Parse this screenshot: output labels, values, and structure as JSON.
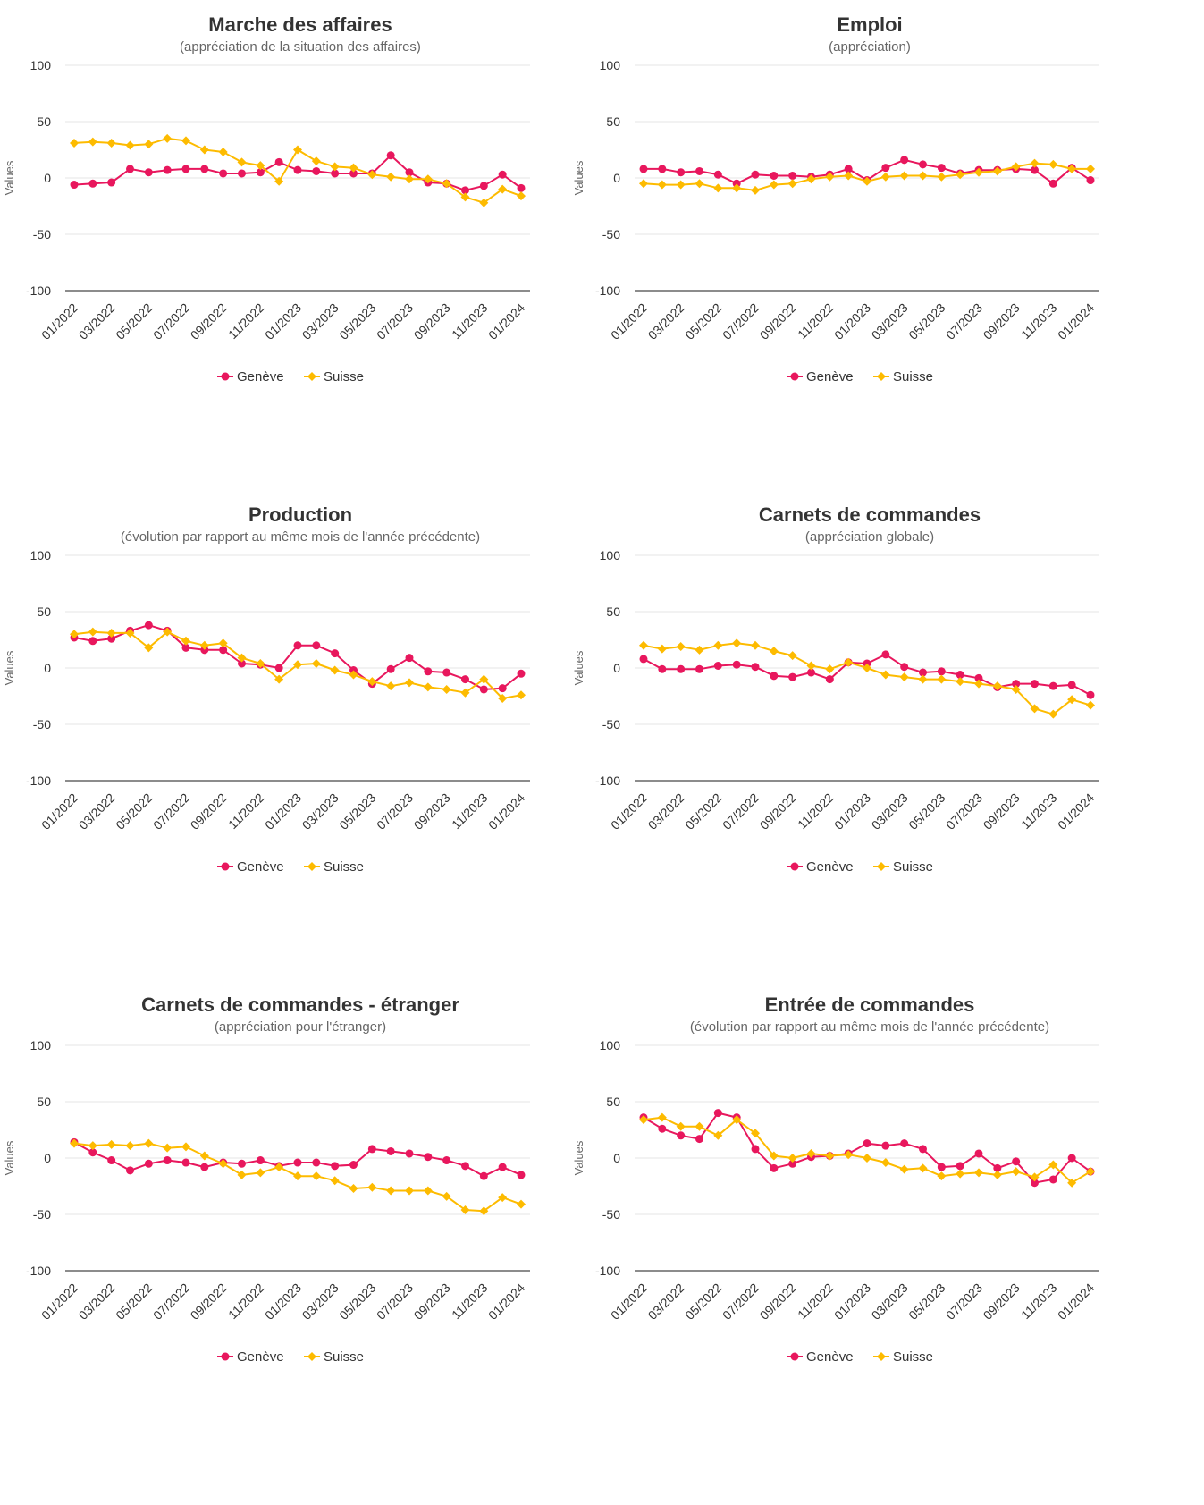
{
  "legend": {
    "geneve": "Genève",
    "suisse": "Suisse"
  },
  "colors": {
    "geneve": "#e8175d",
    "suisse": "#fdbb00"
  },
  "chart_data": [
    {
      "type": "line",
      "title": "Marche des affaires",
      "subtitle": "(appréciation de la situation des affaires)",
      "ylabel": "Values",
      "ylim": [
        -100,
        100
      ],
      "yticks": [
        100,
        50,
        0,
        -50,
        -100
      ],
      "x": [
        "01/2022",
        "02/2022",
        "03/2022",
        "04/2022",
        "05/2022",
        "06/2022",
        "07/2022",
        "08/2022",
        "09/2022",
        "10/2022",
        "11/2022",
        "12/2022",
        "01/2023",
        "02/2023",
        "03/2023",
        "04/2023",
        "05/2023",
        "06/2023",
        "07/2023",
        "08/2023",
        "09/2023",
        "10/2023",
        "11/2023",
        "12/2023",
        "01/2024"
      ],
      "xticks": [
        "01/2022",
        "03/2022",
        "05/2022",
        "07/2022",
        "09/2022",
        "11/2022",
        "01/2023",
        "03/2023",
        "05/2023",
        "07/2023",
        "09/2023",
        "11/2023",
        "01/2024"
      ],
      "series": [
        {
          "name": "Genève",
          "values": [
            -6,
            -5,
            -4,
            8,
            5,
            7,
            8,
            8,
            4,
            4,
            5,
            14,
            7,
            6,
            4,
            4,
            4,
            20,
            5,
            -4,
            -5,
            -11,
            -7,
            3,
            -9
          ]
        },
        {
          "name": "Suisse",
          "values": [
            31,
            32,
            31,
            29,
            30,
            35,
            33,
            25,
            23,
            14,
            11,
            -3,
            25,
            15,
            10,
            9,
            3,
            1,
            -1,
            -1,
            -5,
            -17,
            -22,
            -10,
            -16
          ]
        }
      ]
    },
    {
      "type": "line",
      "title": "Emploi",
      "subtitle": "(appréciation)",
      "ylabel": "Values",
      "ylim": [
        -100,
        100
      ],
      "yticks": [
        100,
        50,
        0,
        -50,
        -100
      ],
      "x": [
        "01/2022",
        "02/2022",
        "03/2022",
        "04/2022",
        "05/2022",
        "06/2022",
        "07/2022",
        "08/2022",
        "09/2022",
        "10/2022",
        "11/2022",
        "12/2022",
        "01/2023",
        "02/2023",
        "03/2023",
        "04/2023",
        "05/2023",
        "06/2023",
        "07/2023",
        "08/2023",
        "09/2023",
        "10/2023",
        "11/2023",
        "12/2023",
        "01/2024"
      ],
      "xticks": [
        "01/2022",
        "03/2022",
        "05/2022",
        "07/2022",
        "09/2022",
        "11/2022",
        "01/2023",
        "03/2023",
        "05/2023",
        "07/2023",
        "09/2023",
        "11/2023",
        "01/2024"
      ],
      "series": [
        {
          "name": "Genève",
          "values": [
            8,
            8,
            5,
            6,
            3,
            -5,
            3,
            2,
            2,
            1,
            3,
            8,
            -2,
            9,
            16,
            12,
            9,
            4,
            7,
            7,
            8,
            7,
            -5,
            9,
            -2
          ]
        },
        {
          "name": "Suisse",
          "values": [
            -5,
            -6,
            -6,
            -5,
            -9,
            -9,
            -11,
            -6,
            -5,
            -1,
            1,
            2,
            -3,
            1,
            2,
            2,
            1,
            3,
            5,
            6,
            10,
            13,
            12,
            8,
            8
          ]
        }
      ]
    },
    {
      "type": "line",
      "title": "Production",
      "subtitle": "(évolution par rapport au même mois de l'année précédente)",
      "ylabel": "Values",
      "ylim": [
        -100,
        100
      ],
      "yticks": [
        100,
        50,
        0,
        -50,
        -100
      ],
      "x": [
        "01/2022",
        "02/2022",
        "03/2022",
        "04/2022",
        "05/2022",
        "06/2022",
        "07/2022",
        "08/2022",
        "09/2022",
        "10/2022",
        "11/2022",
        "12/2022",
        "01/2023",
        "02/2023",
        "03/2023",
        "04/2023",
        "05/2023",
        "06/2023",
        "07/2023",
        "08/2023",
        "09/2023",
        "10/2023",
        "11/2023",
        "12/2023",
        "01/2024"
      ],
      "xticks": [
        "01/2022",
        "03/2022",
        "05/2022",
        "07/2022",
        "09/2022",
        "11/2022",
        "01/2023",
        "03/2023",
        "05/2023",
        "07/2023",
        "09/2023",
        "11/2023",
        "01/2024"
      ],
      "series": [
        {
          "name": "Genève",
          "values": [
            27,
            24,
            26,
            33,
            38,
            33,
            18,
            16,
            16,
            4,
            3,
            0,
            20,
            20,
            13,
            -2,
            -14,
            -1,
            9,
            -3,
            -4,
            -10,
            -19,
            -18,
            -5
          ]
        },
        {
          "name": "Suisse",
          "values": [
            30,
            32,
            31,
            31,
            18,
            32,
            24,
            20,
            22,
            9,
            4,
            -10,
            3,
            4,
            -2,
            -6,
            -12,
            -16,
            -13,
            -17,
            -19,
            -22,
            -10,
            -27,
            -24
          ]
        }
      ]
    },
    {
      "type": "line",
      "title": "Carnets de commandes",
      "subtitle": "(appréciation globale)",
      "ylabel": "Values",
      "ylim": [
        -100,
        100
      ],
      "yticks": [
        100,
        50,
        0,
        -50,
        -100
      ],
      "x": [
        "01/2022",
        "02/2022",
        "03/2022",
        "04/2022",
        "05/2022",
        "06/2022",
        "07/2022",
        "08/2022",
        "09/2022",
        "10/2022",
        "11/2022",
        "12/2022",
        "01/2023",
        "02/2023",
        "03/2023",
        "04/2023",
        "05/2023",
        "06/2023",
        "07/2023",
        "08/2023",
        "09/2023",
        "10/2023",
        "11/2023",
        "12/2023",
        "01/2024"
      ],
      "xticks": [
        "01/2022",
        "03/2022",
        "05/2022",
        "07/2022",
        "09/2022",
        "11/2022",
        "01/2023",
        "03/2023",
        "05/2023",
        "07/2023",
        "09/2023",
        "11/2023",
        "01/2024"
      ],
      "series": [
        {
          "name": "Genève",
          "values": [
            8,
            -1,
            -1,
            -1,
            2,
            3,
            1,
            -7,
            -8,
            -4,
            -10,
            5,
            4,
            12,
            1,
            -4,
            -3,
            -6,
            -9,
            -17,
            -14,
            -14,
            -16,
            -15,
            -24
          ]
        },
        {
          "name": "Suisse",
          "values": [
            20,
            17,
            19,
            16,
            20,
            22,
            20,
            15,
            11,
            2,
            -1,
            5,
            0,
            -6,
            -8,
            -10,
            -10,
            -12,
            -14,
            -16,
            -19,
            -36,
            -41,
            -28,
            -33
          ]
        }
      ]
    },
    {
      "type": "line",
      "title": "Carnets de commandes - étranger",
      "subtitle": "(appréciation pour l'étranger)",
      "ylabel": "Values",
      "ylim": [
        -100,
        100
      ],
      "yticks": [
        100,
        50,
        0,
        -50,
        -100
      ],
      "x": [
        "01/2022",
        "02/2022",
        "03/2022",
        "04/2022",
        "05/2022",
        "06/2022",
        "07/2022",
        "08/2022",
        "09/2022",
        "10/2022",
        "11/2022",
        "12/2022",
        "01/2023",
        "02/2023",
        "03/2023",
        "04/2023",
        "05/2023",
        "06/2023",
        "07/2023",
        "08/2023",
        "09/2023",
        "10/2023",
        "11/2023",
        "12/2023",
        "01/2024"
      ],
      "xticks": [
        "01/2022",
        "03/2022",
        "05/2022",
        "07/2022",
        "09/2022",
        "11/2022",
        "01/2023",
        "03/2023",
        "05/2023",
        "07/2023",
        "09/2023",
        "11/2023",
        "01/2024"
      ],
      "series": [
        {
          "name": "Genève",
          "values": [
            14,
            5,
            -2,
            -11,
            -5,
            -2,
            -4,
            -8,
            -4,
            -5,
            -2,
            -7,
            -4,
            -4,
            -7,
            -6,
            8,
            6,
            4,
            1,
            -2,
            -7,
            -16,
            -8,
            -15
          ]
        },
        {
          "name": "Suisse",
          "values": [
            13,
            11,
            12,
            11,
            13,
            9,
            10,
            2,
            -5,
            -15,
            -13,
            -8,
            -16,
            -16,
            -20,
            -27,
            -26,
            -29,
            -29,
            -29,
            -34,
            -46,
            -47,
            -35,
            -41
          ]
        }
      ]
    },
    {
      "type": "line",
      "title": "Entrée de commandes",
      "subtitle": "(évolution par rapport au même mois de l'année précédente)",
      "ylabel": "Values",
      "ylim": [
        -100,
        100
      ],
      "yticks": [
        100,
        50,
        0,
        -50,
        -100
      ],
      "x": [
        "01/2022",
        "02/2022",
        "03/2022",
        "04/2022",
        "05/2022",
        "06/2022",
        "07/2022",
        "08/2022",
        "09/2022",
        "10/2022",
        "11/2022",
        "12/2022",
        "01/2023",
        "02/2023",
        "03/2023",
        "04/2023",
        "05/2023",
        "06/2023",
        "07/2023",
        "08/2023",
        "09/2023",
        "10/2023",
        "11/2023",
        "12/2023",
        "01/2024"
      ],
      "xticks": [
        "01/2022",
        "03/2022",
        "05/2022",
        "07/2022",
        "09/2022",
        "11/2022",
        "01/2023",
        "03/2023",
        "05/2023",
        "07/2023",
        "09/2023",
        "11/2023",
        "01/2024"
      ],
      "series": [
        {
          "name": "Genève",
          "values": [
            36,
            26,
            20,
            17,
            40,
            36,
            8,
            -9,
            -5,
            1,
            2,
            4,
            13,
            11,
            13,
            8,
            -8,
            -7,
            4,
            -9,
            -3,
            -22,
            -19,
            0,
            -12
          ]
        },
        {
          "name": "Suisse",
          "values": [
            34,
            36,
            28,
            28,
            20,
            34,
            22,
            2,
            0,
            4,
            2,
            3,
            0,
            -4,
            -10,
            -9,
            -16,
            -14,
            -13,
            -15,
            -12,
            -17,
            -6,
            -22,
            -12
          ]
        }
      ]
    }
  ]
}
